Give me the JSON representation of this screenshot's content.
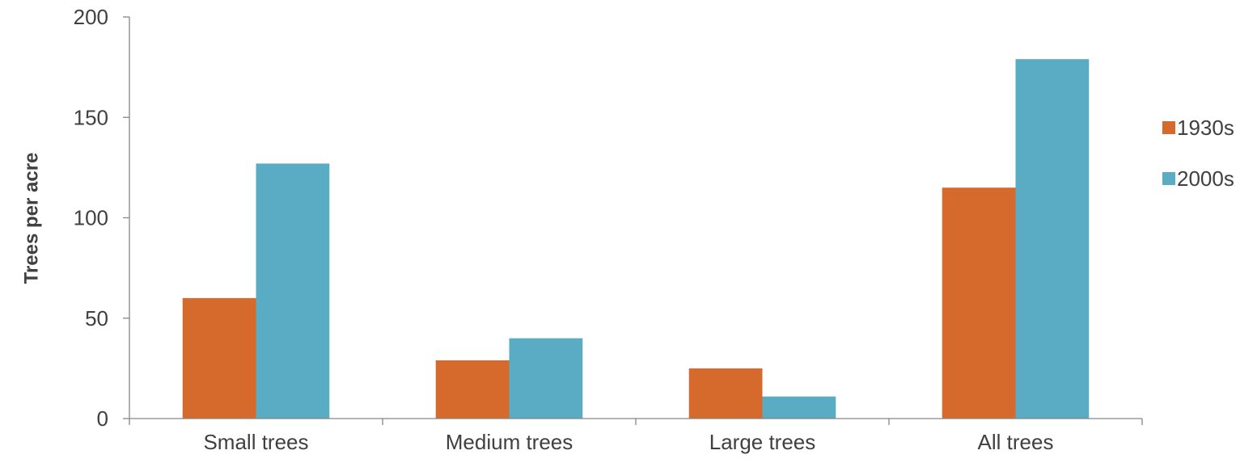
{
  "chart_data": {
    "type": "bar",
    "title": "",
    "xlabel": "",
    "ylabel": "Trees per acre",
    "categories": [
      "Small trees",
      "Medium trees",
      "Large trees",
      "All trees"
    ],
    "series": [
      {
        "name": "1930s",
        "color": "#d66a2d",
        "values": [
          60,
          29,
          25,
          115
        ]
      },
      {
        "name": "2000s",
        "color": "#59acc4",
        "values": [
          127,
          40,
          11,
          179
        ]
      }
    ],
    "ylim": [
      0,
      200
    ],
    "yticks": [
      0,
      50,
      100,
      150,
      200
    ],
    "grid": false,
    "legend_position": "right"
  }
}
